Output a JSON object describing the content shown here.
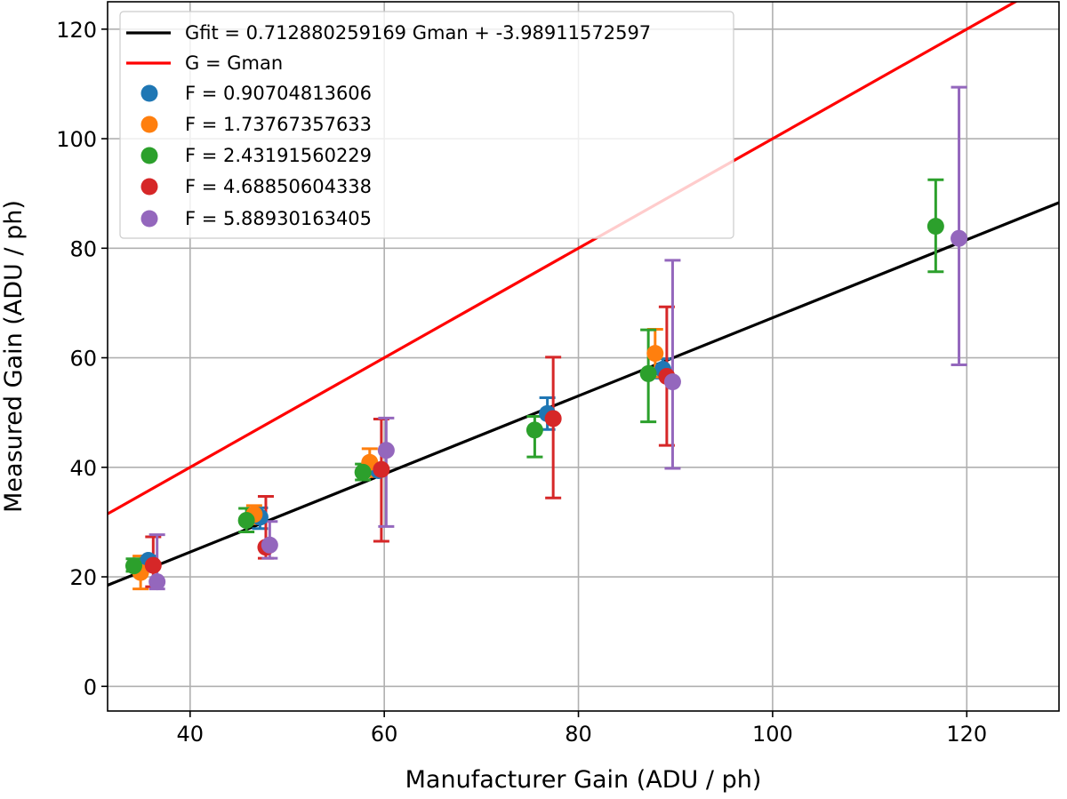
{
  "chart_data": {
    "type": "scatter",
    "xlabel": "Manufacturer Gain (ADU / ph)",
    "ylabel": "Measured Gain (ADU / ph)",
    "xlim": [
      31.5,
      129.5
    ],
    "ylim": [
      -4.5,
      125
    ],
    "xticks": [
      40,
      60,
      80,
      100,
      120
    ],
    "yticks": [
      0,
      20,
      40,
      60,
      80,
      100,
      120
    ],
    "grid": true,
    "legend_position": "top-left",
    "lines": [
      {
        "name": "Gfit = 0.712880259169 Gman + -3.98911572597",
        "color": "#000000",
        "slope": 0.712880259169,
        "intercept": -3.98911572597
      },
      {
        "name": "G = Gman",
        "color": "#ff0000",
        "slope": 1,
        "intercept": 0
      }
    ],
    "series": [
      {
        "name": "F = 0.90704813606",
        "color": "#1f77b4",
        "points": [
          {
            "x": 35.7,
            "y": 23.0,
            "ylo": 22.2,
            "yhi": 23.8
          },
          {
            "x": 47.2,
            "y": 30.9,
            "ylo": 28.8,
            "yhi": 32.6
          },
          {
            "x": 59.4,
            "y": 39.4,
            "ylo": 38.5,
            "yhi": 40.4
          },
          {
            "x": 76.8,
            "y": 49.8,
            "ylo": 46.9,
            "yhi": 52.7
          },
          {
            "x": 88.7,
            "y": 57.9,
            "ylo": 56.3,
            "yhi": 59.8
          }
        ]
      },
      {
        "name": "F = 1.73767357633",
        "color": "#ff7f0e",
        "points": [
          {
            "x": 34.9,
            "y": 20.8,
            "ylo": 17.8,
            "yhi": 23.8
          },
          {
            "x": 46.6,
            "y": 31.4,
            "ylo": 29.7,
            "yhi": 33.0
          },
          {
            "x": 58.5,
            "y": 40.9,
            "ylo": 38.3,
            "yhi": 43.4
          },
          {
            "x": 87.9,
            "y": 60.8,
            "ylo": 56.5,
            "yhi": 65.2
          }
        ]
      },
      {
        "name": "F = 2.43191560229",
        "color": "#2ca02c",
        "points": [
          {
            "x": 34.2,
            "y": 22.0,
            "ylo": 21.0,
            "yhi": 23.3
          },
          {
            "x": 45.8,
            "y": 30.3,
            "ylo": 28.2,
            "yhi": 32.5
          },
          {
            "x": 57.8,
            "y": 39.1,
            "ylo": 37.7,
            "yhi": 40.6
          },
          {
            "x": 75.5,
            "y": 46.8,
            "ylo": 41.9,
            "yhi": 49.3
          },
          {
            "x": 87.2,
            "y": 57.1,
            "ylo": 48.3,
            "yhi": 65.1
          },
          {
            "x": 116.8,
            "y": 84.0,
            "ylo": 75.7,
            "yhi": 92.5
          }
        ]
      },
      {
        "name": "F = 4.68850604338",
        "color": "#d62728",
        "points": [
          {
            "x": 36.2,
            "y": 22.1,
            "ylo": 18.2,
            "yhi": 27.3
          },
          {
            "x": 47.8,
            "y": 25.4,
            "ylo": 23.4,
            "yhi": 34.7
          },
          {
            "x": 59.7,
            "y": 39.6,
            "ylo": 26.5,
            "yhi": 48.8
          },
          {
            "x": 77.4,
            "y": 48.9,
            "ylo": 34.4,
            "yhi": 60.1
          },
          {
            "x": 89.1,
            "y": 56.6,
            "ylo": 44.0,
            "yhi": 69.3
          }
        ]
      },
      {
        "name": "F = 5.88930163405",
        "color": "#9467bd",
        "points": [
          {
            "x": 36.6,
            "y": 19.1,
            "ylo": 17.8,
            "yhi": 27.7
          },
          {
            "x": 48.2,
            "y": 25.8,
            "ylo": 23.4,
            "yhi": 30.1
          },
          {
            "x": 60.2,
            "y": 43.1,
            "ylo": 29.2,
            "yhi": 49.0
          },
          {
            "x": 89.7,
            "y": 55.6,
            "ylo": 39.8,
            "yhi": 77.8
          },
          {
            "x": 119.2,
            "y": 81.8,
            "ylo": 58.7,
            "yhi": 109.4
          }
        ]
      }
    ]
  }
}
